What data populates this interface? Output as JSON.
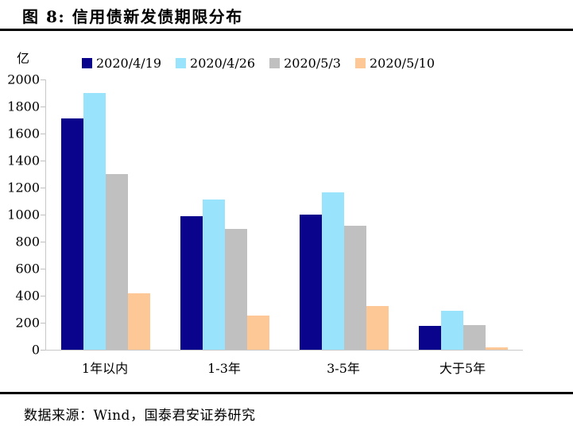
{
  "header": {
    "title": "图 8:  信用债新发债期限分布"
  },
  "footer": {
    "source": "数据来源：Wind，国泰君安证券研究"
  },
  "colors": {
    "series_navy": "#0A038C",
    "series_sky": "#99E3FC",
    "series_gray": "#C0C0C0",
    "series_orange": "#FDC896",
    "axis_line": "#C9C9C9",
    "rule": "#000000"
  },
  "chart_data": {
    "type": "bar",
    "title": "信用债新发债期限分布",
    "unit_label": "亿",
    "categories": [
      "1年以内",
      "1-3年",
      "3-5年",
      "大于5年"
    ],
    "series": [
      {
        "name": "2020/4/19",
        "color": "#0A038C",
        "values": [
          1710,
          990,
          1000,
          175
        ]
      },
      {
        "name": "2020/4/26",
        "color": "#99E3FC",
        "values": [
          1900,
          1110,
          1165,
          290
        ]
      },
      {
        "name": "2020/5/3",
        "color": "#C0C0C0",
        "values": [
          1300,
          895,
          920,
          185
        ]
      },
      {
        "name": "2020/5/10",
        "color": "#FDC896",
        "values": [
          415,
          255,
          325,
          20
        ]
      }
    ],
    "xlabel": "",
    "ylabel": "亿",
    "ylim": [
      0,
      2000
    ],
    "ytick_step": 200,
    "grid": false,
    "legend_position": "top"
  }
}
